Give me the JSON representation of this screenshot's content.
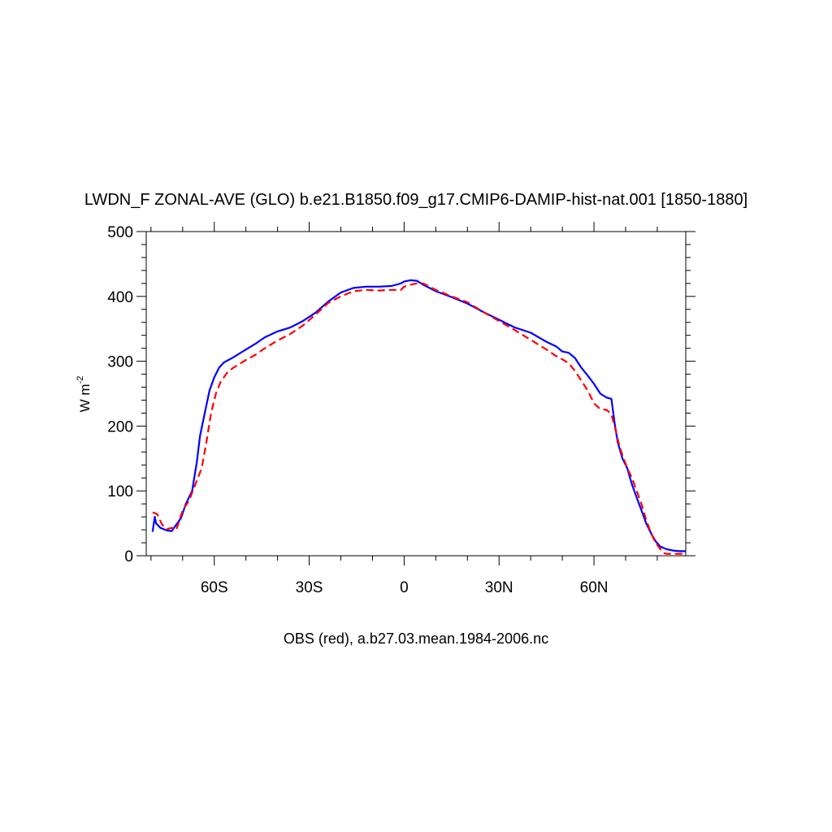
{
  "chart_data": {
    "type": "line",
    "title": "LWDN_F ZONAL-AVE (GLO) b.e21.B1850.f09_g17.CMIP6-DAMIP-hist-nat.001 [1850-1880]",
    "ylabel_base": "W m",
    "ylabel_exp": "-2",
    "xlabel": "",
    "footer": "OBS (red), a.b27.03.mean.1984-2006.nc",
    "xlim": [
      -81.5,
      89
    ],
    "ylim": [
      0,
      500
    ],
    "x_major_ticks": [
      -60,
      -30,
      0,
      30,
      60
    ],
    "x_tick_labels": [
      "60S",
      "30S",
      "0",
      "30N",
      "60N"
    ],
    "y_major_ticks": [
      0,
      100,
      200,
      300,
      400,
      500
    ],
    "y_tick_labels": [
      "0",
      "100",
      "200",
      "300",
      "400",
      "500"
    ],
    "series": [
      {
        "color": "#0000ff",
        "dash": "solid",
        "x": [
          -79.5,
          -78.8,
          -78.4,
          -77,
          -75,
          -73.5,
          -72,
          -70.5,
          -69,
          -67,
          -65.5,
          -64.5,
          -63,
          -61.5,
          -60,
          -58.5,
          -57,
          -55.5,
          -54,
          -52,
          -50,
          -47,
          -44,
          -40,
          -36,
          -32,
          -28,
          -24,
          -20,
          -16,
          -12,
          -8,
          -4,
          -1,
          0,
          2,
          4,
          6,
          8,
          10,
          15,
          20,
          25,
          30,
          35,
          40,
          45,
          48,
          50,
          52,
          54,
          56,
          58,
          60,
          62,
          64,
          65.5,
          66.5,
          67.5,
          69,
          70.5,
          72,
          73.5,
          75,
          76.5,
          78,
          79.5,
          81,
          83,
          85,
          87,
          89
        ],
        "y": [
          37,
          60,
          50,
          43,
          39,
          38,
          48,
          58,
          80,
          100,
          145,
          185,
          220,
          255,
          275,
          290,
          298,
          302,
          306,
          312,
          318,
          327,
          337,
          346,
          352,
          362,
          375,
          392,
          406,
          413,
          415,
          415,
          416,
          420,
          423,
          425,
          424,
          418,
          413,
          408,
          399,
          389,
          376,
          364,
          352,
          344,
          330,
          323,
          315,
          313,
          305,
          290,
          278,
          265,
          250,
          244,
          242,
          205,
          175,
          150,
          135,
          110,
          90,
          70,
          50,
          35,
          22,
          14,
          10,
          8,
          7,
          7
        ]
      },
      {
        "color": "#ff0000",
        "dash": "dashed",
        "x": [
          -79.5,
          -78,
          -76.5,
          -75,
          -73.5,
          -72,
          -70,
          -68,
          -66,
          -64,
          -62.5,
          -61,
          -59.5,
          -58,
          -56,
          -54,
          -52,
          -50,
          -47,
          -44,
          -40,
          -36,
          -32,
          -28,
          -24,
          -20,
          -16,
          -12,
          -8,
          -4,
          -1,
          0,
          2,
          4,
          6,
          8,
          10,
          15,
          20,
          25,
          30,
          35,
          40,
          45,
          48,
          50,
          52,
          54,
          56,
          58,
          60,
          62,
          64,
          65.5,
          66.5,
          68,
          69,
          70.5,
          72,
          73.5,
          75,
          76.5,
          78,
          79.5,
          81,
          82,
          83,
          85,
          87,
          89
        ],
        "y": [
          67,
          64,
          48,
          41,
          43,
          40,
          70,
          85,
          110,
          135,
          175,
          220,
          250,
          268,
          282,
          290,
          296,
          302,
          310,
          320,
          332,
          342,
          355,
          372,
          390,
          400,
          408,
          410,
          409,
          410,
          410,
          415,
          418,
          420,
          420,
          415,
          410,
          400,
          391,
          376,
          362,
          348,
          333,
          318,
          308,
          303,
          297,
          285,
          270,
          255,
          235,
          226,
          225,
          218,
          200,
          170,
          155,
          135,
          120,
          100,
          80,
          55,
          35,
          20,
          10,
          4,
          3,
          3,
          3,
          3
        ]
      }
    ]
  }
}
